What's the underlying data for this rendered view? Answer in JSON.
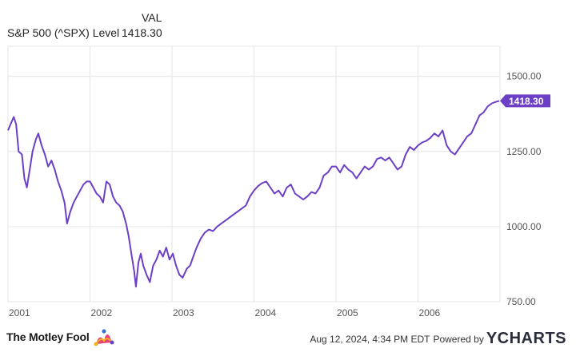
{
  "legend": {
    "header": "VAL",
    "series_name": "S&P 500 (^SPX) Level",
    "series_value": "1418.30"
  },
  "colors": {
    "line": "#6b3fc6",
    "grid": "#e5e5e5",
    "axis_text": "#555555",
    "badge_bg": "#6b3fc6",
    "badge_text": "#ffffff"
  },
  "chart_data": {
    "type": "line",
    "title": "",
    "xlabel": "",
    "ylabel": "",
    "x_ticks": [
      "2001",
      "2002",
      "2003",
      "2004",
      "2005",
      "2006"
    ],
    "y_ticks": [
      "1500.00",
      "1250.00",
      "1000.00",
      "750.00"
    ],
    "ylim": [
      750,
      1600
    ],
    "xlim": [
      2001.0,
      2007.0
    ],
    "grid": true,
    "last_value_label": "1418.30",
    "series": [
      {
        "name": "S&P 500 (^SPX) Level",
        "points": [
          [
            2001.0,
            1320
          ],
          [
            2001.03,
            1340
          ],
          [
            2001.07,
            1365
          ],
          [
            2001.1,
            1340
          ],
          [
            2001.13,
            1250
          ],
          [
            2001.17,
            1240
          ],
          [
            2001.2,
            1160
          ],
          [
            2001.23,
            1130
          ],
          [
            2001.26,
            1180
          ],
          [
            2001.3,
            1250
          ],
          [
            2001.34,
            1290
          ],
          [
            2001.37,
            1310
          ],
          [
            2001.41,
            1270
          ],
          [
            2001.45,
            1240
          ],
          [
            2001.49,
            1200
          ],
          [
            2001.53,
            1220
          ],
          [
            2001.57,
            1190
          ],
          [
            2001.61,
            1150
          ],
          [
            2001.65,
            1120
          ],
          [
            2001.69,
            1080
          ],
          [
            2001.72,
            1010
          ],
          [
            2001.76,
            1050
          ],
          [
            2001.8,
            1080
          ],
          [
            2001.84,
            1100
          ],
          [
            2001.88,
            1120
          ],
          [
            2001.92,
            1140
          ],
          [
            2001.96,
            1150
          ],
          [
            2002.0,
            1150
          ],
          [
            2002.04,
            1130
          ],
          [
            2002.08,
            1110
          ],
          [
            2002.12,
            1100
          ],
          [
            2002.16,
            1080
          ],
          [
            2002.2,
            1150
          ],
          [
            2002.24,
            1140
          ],
          [
            2002.28,
            1100
          ],
          [
            2002.32,
            1080
          ],
          [
            2002.36,
            1070
          ],
          [
            2002.4,
            1050
          ],
          [
            2002.44,
            1010
          ],
          [
            2002.47,
            970
          ],
          [
            2002.51,
            900
          ],
          [
            2002.54,
            850
          ],
          [
            2002.56,
            800
          ],
          [
            2002.59,
            880
          ],
          [
            2002.62,
            910
          ],
          [
            2002.65,
            870
          ],
          [
            2002.69,
            840
          ],
          [
            2002.73,
            815
          ],
          [
            2002.77,
            870
          ],
          [
            2002.81,
            890
          ],
          [
            2002.85,
            920
          ],
          [
            2002.89,
            900
          ],
          [
            2002.93,
            930
          ],
          [
            2002.97,
            890
          ],
          [
            2003.01,
            910
          ],
          [
            2003.05,
            870
          ],
          [
            2003.09,
            840
          ],
          [
            2003.13,
            830
          ],
          [
            2003.18,
            860
          ],
          [
            2003.22,
            870
          ],
          [
            2003.26,
            900
          ],
          [
            2003.3,
            930
          ],
          [
            2003.35,
            960
          ],
          [
            2003.4,
            980
          ],
          [
            2003.45,
            990
          ],
          [
            2003.5,
            985
          ],
          [
            2003.55,
            1000
          ],
          [
            2003.6,
            1010
          ],
          [
            2003.65,
            1020
          ],
          [
            2003.7,
            1030
          ],
          [
            2003.75,
            1040
          ],
          [
            2003.8,
            1050
          ],
          [
            2003.85,
            1060
          ],
          [
            2003.9,
            1070
          ],
          [
            2003.95,
            1100
          ],
          [
            2004.0,
            1120
          ],
          [
            2004.05,
            1135
          ],
          [
            2004.1,
            1145
          ],
          [
            2004.15,
            1150
          ],
          [
            2004.2,
            1130
          ],
          [
            2004.25,
            1110
          ],
          [
            2004.3,
            1120
          ],
          [
            2004.35,
            1100
          ],
          [
            2004.4,
            1130
          ],
          [
            2004.45,
            1140
          ],
          [
            2004.5,
            1110
          ],
          [
            2004.55,
            1100
          ],
          [
            2004.6,
            1090
          ],
          [
            2004.65,
            1100
          ],
          [
            2004.7,
            1115
          ],
          [
            2004.75,
            1110
          ],
          [
            2004.8,
            1130
          ],
          [
            2004.85,
            1170
          ],
          [
            2004.9,
            1180
          ],
          [
            2004.95,
            1200
          ],
          [
            2005.0,
            1200
          ],
          [
            2005.05,
            1180
          ],
          [
            2005.1,
            1205
          ],
          [
            2005.15,
            1190
          ],
          [
            2005.2,
            1180
          ],
          [
            2005.25,
            1160
          ],
          [
            2005.3,
            1180
          ],
          [
            2005.35,
            1200
          ],
          [
            2005.4,
            1190
          ],
          [
            2005.45,
            1200
          ],
          [
            2005.5,
            1225
          ],
          [
            2005.55,
            1230
          ],
          [
            2005.6,
            1220
          ],
          [
            2005.65,
            1230
          ],
          [
            2005.7,
            1210
          ],
          [
            2005.75,
            1190
          ],
          [
            2005.8,
            1200
          ],
          [
            2005.85,
            1240
          ],
          [
            2005.9,
            1265
          ],
          [
            2005.95,
            1255
          ],
          [
            2006.0,
            1270
          ],
          [
            2006.05,
            1280
          ],
          [
            2006.1,
            1285
          ],
          [
            2006.15,
            1295
          ],
          [
            2006.2,
            1310
          ],
          [
            2006.25,
            1300
          ],
          [
            2006.3,
            1320
          ],
          [
            2006.35,
            1270
          ],
          [
            2006.4,
            1250
          ],
          [
            2006.45,
            1240
          ],
          [
            2006.5,
            1260
          ],
          [
            2006.55,
            1280
          ],
          [
            2006.6,
            1300
          ],
          [
            2006.65,
            1310
          ],
          [
            2006.7,
            1340
          ],
          [
            2006.75,
            1370
          ],
          [
            2006.8,
            1380
          ],
          [
            2006.85,
            1400
          ],
          [
            2006.9,
            1410
          ],
          [
            2006.95,
            1415
          ],
          [
            2006.99,
            1418.3
          ]
        ]
      }
    ]
  },
  "footer": {
    "brand": "The Motley Fool",
    "timestamp": "Aug 12, 2024, 4:34 PM EDT",
    "powered_by": "Powered by",
    "ycharts": "YCHARTS"
  }
}
